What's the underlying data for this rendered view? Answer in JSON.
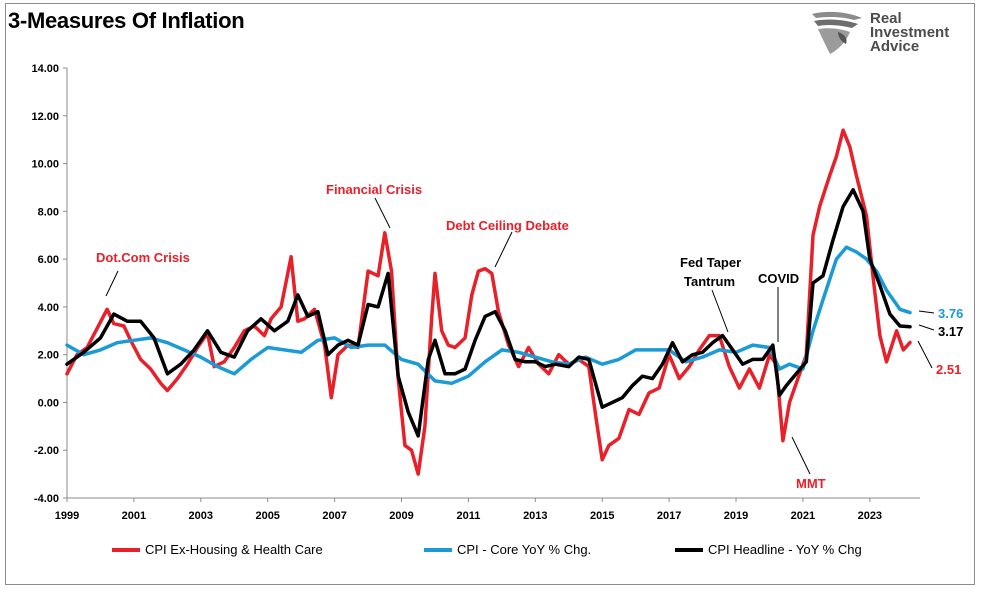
{
  "title": "3-Measures Of Inflation",
  "brand": {
    "line1": "Real",
    "line2": "Investment",
    "line3": "Advice"
  },
  "colors": {
    "ex_housing": "#e8202a",
    "core": "#1a9ad6",
    "headline": "#000000",
    "annotation_red": "#e8202a"
  },
  "legend": [
    {
      "key": "ex_housing",
      "label": "CPI Ex-Housing & Health Care"
    },
    {
      "key": "core",
      "label": "CPI - Core YoY % Chg."
    },
    {
      "key": "headline",
      "label": "CPI Headline - YoY % Chg"
    }
  ],
  "annotations": {
    "dotcom": "Dot.Com Crisis",
    "financial": "Financial Crisis",
    "debt": "Debt Ceiling Debate",
    "taper1": "Fed Taper",
    "taper2": "Tantrum",
    "covid": "COVID",
    "mmt": "MMT"
  },
  "end_labels": {
    "core": "3.76",
    "headline": "3.17",
    "ex_housing": "2.51"
  },
  "chart_data": {
    "type": "line",
    "title": "3-Measures Of Inflation",
    "x_range": [
      1999.0,
      2024.5
    ],
    "x_ticks": [
      "1999",
      "2001",
      "2003",
      "2005",
      "2007",
      "2009",
      "2011",
      "2013",
      "2015",
      "2017",
      "2019",
      "2021",
      "2023"
    ],
    "y_ticks": [
      "-4.00",
      "-2.00",
      "0.00",
      "2.00",
      "4.00",
      "6.00",
      "8.00",
      "10.00",
      "12.00",
      "14.00"
    ],
    "ylim": [
      -4,
      14
    ],
    "grid": false,
    "legend_position": "bottom",
    "series": [
      {
        "name": "CPI Ex-Housing & Health Care",
        "key": "ex_housing",
        "x": [
          1999.0,
          1999.3,
          1999.6,
          1999.9,
          2000.2,
          2000.4,
          2000.7,
          2000.9,
          2001.2,
          2001.5,
          2001.8,
          2002.0,
          2002.3,
          2002.6,
          2002.9,
          2003.2,
          2003.4,
          2003.7,
          2004.0,
          2004.3,
          2004.6,
          2004.9,
          2005.1,
          2005.4,
          2005.7,
          2005.9,
          2006.1,
          2006.4,
          2006.7,
          2006.9,
          2007.1,
          2007.4,
          2007.7,
          2008.0,
          2008.3,
          2008.5,
          2008.7,
          2008.9,
          2009.1,
          2009.3,
          2009.5,
          2009.7,
          2009.9,
          2010.0,
          2010.2,
          2010.4,
          2010.6,
          2010.9,
          2011.1,
          2011.3,
          2011.5,
          2011.7,
          2011.9,
          2012.2,
          2012.5,
          2012.8,
          2013.1,
          2013.4,
          2013.7,
          2014.0,
          2014.3,
          2014.6,
          2014.8,
          2015.0,
          2015.2,
          2015.5,
          2015.8,
          2016.1,
          2016.4,
          2016.7,
          2017.0,
          2017.3,
          2017.6,
          2017.9,
          2018.2,
          2018.5,
          2018.8,
          2019.1,
          2019.4,
          2019.7,
          2020.0,
          2020.2,
          2020.4,
          2020.6,
          2020.9,
          2021.1,
          2021.3,
          2021.5,
          2021.8,
          2022.0,
          2022.2,
          2022.4,
          2022.6,
          2022.9,
          2023.1,
          2023.3,
          2023.5,
          2023.8,
          2024.0,
          2024.2
        ],
        "y": [
          1.2,
          2.0,
          2.3,
          3.1,
          3.9,
          3.3,
          3.2,
          2.6,
          1.8,
          1.4,
          0.8,
          0.5,
          1.0,
          1.6,
          2.3,
          2.9,
          1.5,
          1.7,
          2.3,
          3.0,
          3.2,
          2.8,
          3.5,
          4.0,
          6.1,
          3.4,
          3.5,
          3.9,
          2.4,
          0.2,
          2.0,
          2.4,
          2.3,
          5.5,
          5.3,
          7.1,
          5.5,
          1.0,
          -1.8,
          -2.0,
          -3.0,
          -1.0,
          3.5,
          5.4,
          3.0,
          2.4,
          2.3,
          2.7,
          4.5,
          5.5,
          5.6,
          5.4,
          3.8,
          2.4,
          1.5,
          2.3,
          1.6,
          1.2,
          2.0,
          1.6,
          1.8,
          1.5,
          -0.5,
          -2.4,
          -1.8,
          -1.5,
          -0.3,
          -0.5,
          0.4,
          0.6,
          2.0,
          1.0,
          1.5,
          2.2,
          2.8,
          2.8,
          1.5,
          0.6,
          1.4,
          0.6,
          2.0,
          1.6,
          -1.6,
          0.0,
          1.2,
          2.0,
          7.0,
          8.2,
          9.5,
          10.3,
          11.4,
          10.7,
          9.5,
          7.8,
          5.2,
          2.8,
          1.7,
          3.0,
          2.2,
          2.51
        ]
      },
      {
        "name": "CPI - Core YoY % Chg.",
        "key": "core",
        "x": [
          1999.0,
          1999.5,
          2000.0,
          2000.5,
          2001.0,
          2001.5,
          2002.0,
          2002.5,
          2003.0,
          2003.5,
          2004.0,
          2004.5,
          2005.0,
          2005.5,
          2006.0,
          2006.5,
          2007.0,
          2007.5,
          2008.0,
          2008.5,
          2009.0,
          2009.5,
          2010.0,
          2010.5,
          2011.0,
          2011.5,
          2012.0,
          2012.5,
          2013.0,
          2013.5,
          2014.0,
          2014.5,
          2015.0,
          2015.5,
          2016.0,
          2016.5,
          2017.0,
          2017.5,
          2018.0,
          2018.5,
          2019.0,
          2019.5,
          2020.0,
          2020.3,
          2020.6,
          2021.0,
          2021.3,
          2021.6,
          2022.0,
          2022.3,
          2022.6,
          2022.9,
          2023.2,
          2023.5,
          2023.9,
          2024.2
        ],
        "y": [
          2.4,
          2.0,
          2.2,
          2.5,
          2.6,
          2.7,
          2.5,
          2.2,
          1.9,
          1.5,
          1.2,
          1.8,
          2.3,
          2.2,
          2.1,
          2.6,
          2.7,
          2.3,
          2.4,
          2.4,
          1.8,
          1.6,
          0.9,
          0.8,
          1.1,
          1.7,
          2.2,
          2.1,
          1.9,
          1.7,
          1.6,
          1.9,
          1.6,
          1.8,
          2.2,
          2.2,
          2.2,
          1.7,
          1.9,
          2.2,
          2.1,
          2.4,
          2.3,
          1.4,
          1.6,
          1.4,
          3.0,
          4.3,
          6.0,
          6.5,
          6.3,
          6.0,
          5.5,
          4.7,
          3.9,
          3.76
        ]
      },
      {
        "name": "CPI Headline - YoY % Chg",
        "key": "headline",
        "x": [
          1999.0,
          1999.5,
          2000.0,
          2000.4,
          2000.8,
          2001.2,
          2001.6,
          2002.0,
          2002.4,
          2002.8,
          2003.2,
          2003.6,
          2004.0,
          2004.4,
          2004.8,
          2005.2,
          2005.6,
          2005.9,
          2006.2,
          2006.5,
          2006.8,
          2007.1,
          2007.4,
          2007.7,
          2008.0,
          2008.3,
          2008.6,
          2008.9,
          2009.2,
          2009.5,
          2009.8,
          2010.0,
          2010.3,
          2010.6,
          2010.9,
          2011.2,
          2011.5,
          2011.8,
          2012.1,
          2012.4,
          2012.7,
          2013.0,
          2013.3,
          2013.6,
          2014.0,
          2014.3,
          2014.6,
          2015.0,
          2015.3,
          2015.6,
          2015.9,
          2016.2,
          2016.5,
          2016.8,
          2017.1,
          2017.4,
          2017.7,
          2018.0,
          2018.3,
          2018.6,
          2018.9,
          2019.2,
          2019.5,
          2019.8,
          2020.1,
          2020.3,
          2020.5,
          2020.8,
          2021.1,
          2021.3,
          2021.6,
          2021.9,
          2022.2,
          2022.5,
          2022.8,
          2023.0,
          2023.3,
          2023.6,
          2023.9,
          2024.2
        ],
        "y": [
          1.6,
          2.1,
          2.7,
          3.7,
          3.4,
          3.4,
          2.7,
          1.2,
          1.6,
          2.2,
          3.0,
          2.1,
          1.9,
          3.0,
          3.5,
          3.0,
          3.4,
          4.5,
          3.6,
          3.8,
          2.0,
          2.4,
          2.6,
          2.4,
          4.1,
          4.0,
          5.4,
          1.1,
          -0.4,
          -1.4,
          1.8,
          2.6,
          1.2,
          1.2,
          1.4,
          2.6,
          3.6,
          3.8,
          3.0,
          1.8,
          1.7,
          1.7,
          1.5,
          1.6,
          1.5,
          1.9,
          1.8,
          -0.2,
          0.0,
          0.2,
          0.7,
          1.1,
          1.0,
          1.6,
          2.5,
          1.7,
          2.0,
          2.1,
          2.5,
          2.8,
          2.2,
          1.6,
          1.8,
          1.8,
          2.4,
          0.3,
          0.7,
          1.2,
          1.7,
          5.0,
          5.3,
          6.8,
          8.2,
          8.9,
          8.0,
          6.0,
          4.9,
          3.7,
          3.2,
          3.17
        ]
      }
    ]
  }
}
